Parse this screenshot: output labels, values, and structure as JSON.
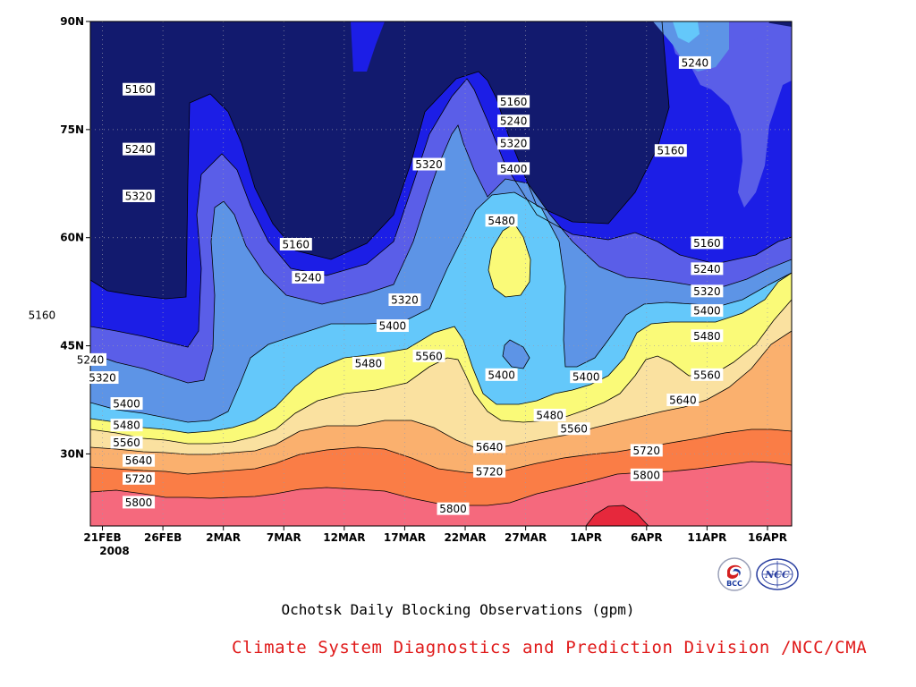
{
  "chart_data": {
    "type": "heatmap",
    "subtype": "filled contour (time-latitude section)",
    "title": "Ochotsk Daily Blocking Observations (gpm)",
    "variable": "geopotential height",
    "units": "gpm",
    "x_axis": {
      "type": "time",
      "range": [
        "2008-02-20",
        "2008-04-18"
      ],
      "ticks": [
        "21FEB",
        "26FEB",
        "2MAR",
        "7MAR",
        "12MAR",
        "17MAR",
        "22MAR",
        "27MAR",
        "1APR",
        "6APR",
        "11APR",
        "16APR"
      ],
      "tick_dates": [
        "2008-02-21",
        "2008-02-26",
        "2008-03-02",
        "2008-03-07",
        "2008-03-12",
        "2008-03-17",
        "2008-03-22",
        "2008-03-27",
        "2008-04-01",
        "2008-04-06",
        "2008-04-11",
        "2008-04-16"
      ],
      "year_label": "2008"
    },
    "y_axis": {
      "type": "latitude",
      "range": [
        20,
        90
      ],
      "ticks": [
        "30N",
        "45N",
        "60N",
        "75N",
        "90N"
      ],
      "tick_values": [
        30,
        45,
        60,
        75,
        90
      ]
    },
    "grid": true,
    "grid_style": "dotted",
    "contour_levels": [
      5160,
      5240,
      5320,
      5400,
      5480,
      5560,
      5640,
      5720,
      5800
    ],
    "color_bands": [
      {
        "range": "<5160",
        "color": "#121a6e"
      },
      {
        "range": "5160-5240",
        "color": "#1c1ee6"
      },
      {
        "range": "5240-5320",
        "color": "#5a5ee8"
      },
      {
        "range": "5320-5400",
        "color": "#5d94e6"
      },
      {
        "range": "5400-5480",
        "color": "#64c8fa"
      },
      {
        "range": "5480-5560",
        "color": "#fafa78"
      },
      {
        "range": "5560-5640",
        "color": "#fae1a0"
      },
      {
        "range": "5640-5720",
        "color": "#fab06e"
      },
      {
        "range": "5720-5800",
        "color": "#fa7d46"
      },
      {
        "range": "5800-5880",
        "color": "#f5697d"
      },
      {
        "range": ">5880",
        "color": "#e6283c"
      }
    ],
    "contour_labels": [
      {
        "value": "5160",
        "date": "2008-02-24",
        "lat": 80.6
      },
      {
        "value": "5240",
        "date": "2008-02-24",
        "lat": 72.3
      },
      {
        "value": "5320",
        "date": "2008-02-24",
        "lat": 65.8
      },
      {
        "value": "5160",
        "date": "2008-03-08",
        "lat": 59.1
      },
      {
        "value": "5240",
        "date": "2008-03-09",
        "lat": 54.5
      },
      {
        "value": "5320",
        "date": "2008-03-17",
        "lat": 51.4
      },
      {
        "value": "5400",
        "date": "2008-03-16",
        "lat": 47.8
      },
      {
        "value": "5480",
        "date": "2008-03-14",
        "lat": 42.6
      },
      {
        "value": "5560",
        "date": "2008-03-19",
        "lat": 43.6
      },
      {
        "value": "5320",
        "date": "2008-03-19",
        "lat": 70.2
      },
      {
        "value": "5160",
        "date": "2008-02-16",
        "lat": 49.3
      },
      {
        "value": "5240",
        "date": "2008-02-20",
        "lat": 43.1
      },
      {
        "value": "5320",
        "date": "2008-02-21",
        "lat": 40.6
      },
      {
        "value": "5400",
        "date": "2008-02-23",
        "lat": 37.0
      },
      {
        "value": "5480",
        "date": "2008-02-23",
        "lat": 34.0
      },
      {
        "value": "5560",
        "date": "2008-02-23",
        "lat": 31.6
      },
      {
        "value": "5640",
        "date": "2008-02-24",
        "lat": 29.1
      },
      {
        "value": "5720",
        "date": "2008-02-24",
        "lat": 26.6
      },
      {
        "value": "5800",
        "date": "2008-02-24",
        "lat": 23.3
      },
      {
        "value": "5160",
        "date": "2008-03-26",
        "lat": 78.9
      },
      {
        "value": "5240",
        "date": "2008-03-26",
        "lat": 76.2
      },
      {
        "value": "5320",
        "date": "2008-03-26",
        "lat": 73.1
      },
      {
        "value": "5400",
        "date": "2008-03-26",
        "lat": 69.6
      },
      {
        "value": "5480",
        "date": "2008-03-25",
        "lat": 62.4
      },
      {
        "value": "5400",
        "date": "2008-03-25",
        "lat": 41.0
      },
      {
        "value": "5480",
        "date": "2008-03-29",
        "lat": 35.4
      },
      {
        "value": "5560",
        "date": "2008-03-31",
        "lat": 33.5
      },
      {
        "value": "5640",
        "date": "2008-03-24",
        "lat": 31.0
      },
      {
        "value": "5720",
        "date": "2008-03-24",
        "lat": 27.6
      },
      {
        "value": "5800",
        "date": "2008-03-21",
        "lat": 22.4
      },
      {
        "value": "5400",
        "date": "2008-04-01",
        "lat": 40.7
      },
      {
        "value": "5240",
        "date": "2008-04-10",
        "lat": 84.3
      },
      {
        "value": "5160",
        "date": "2008-04-08",
        "lat": 72.1
      },
      {
        "value": "5160",
        "date": "2008-04-11",
        "lat": 59.3
      },
      {
        "value": "5240",
        "date": "2008-04-11",
        "lat": 55.7
      },
      {
        "value": "5320",
        "date": "2008-04-11",
        "lat": 52.6
      },
      {
        "value": "5400",
        "date": "2008-04-11",
        "lat": 49.9
      },
      {
        "value": "5480",
        "date": "2008-04-11",
        "lat": 46.4
      },
      {
        "value": "5560",
        "date": "2008-04-11",
        "lat": 41.0
      },
      {
        "value": "5640",
        "date": "2008-04-09",
        "lat": 37.5
      },
      {
        "value": "5720",
        "date": "2008-04-06",
        "lat": 30.5
      },
      {
        "value": "5800",
        "date": "2008-04-06",
        "lat": 27.1
      }
    ]
  },
  "footer": {
    "caption": "Ochotsk Daily Blocking Observations (gpm)",
    "credit": "Climate System Diagnostics and Prediction Division /NCC/CMA",
    "logos": [
      {
        "icon": "bcc-logo",
        "text": "BCC"
      },
      {
        "icon": "ncc-logo",
        "text": "NCC"
      }
    ]
  }
}
